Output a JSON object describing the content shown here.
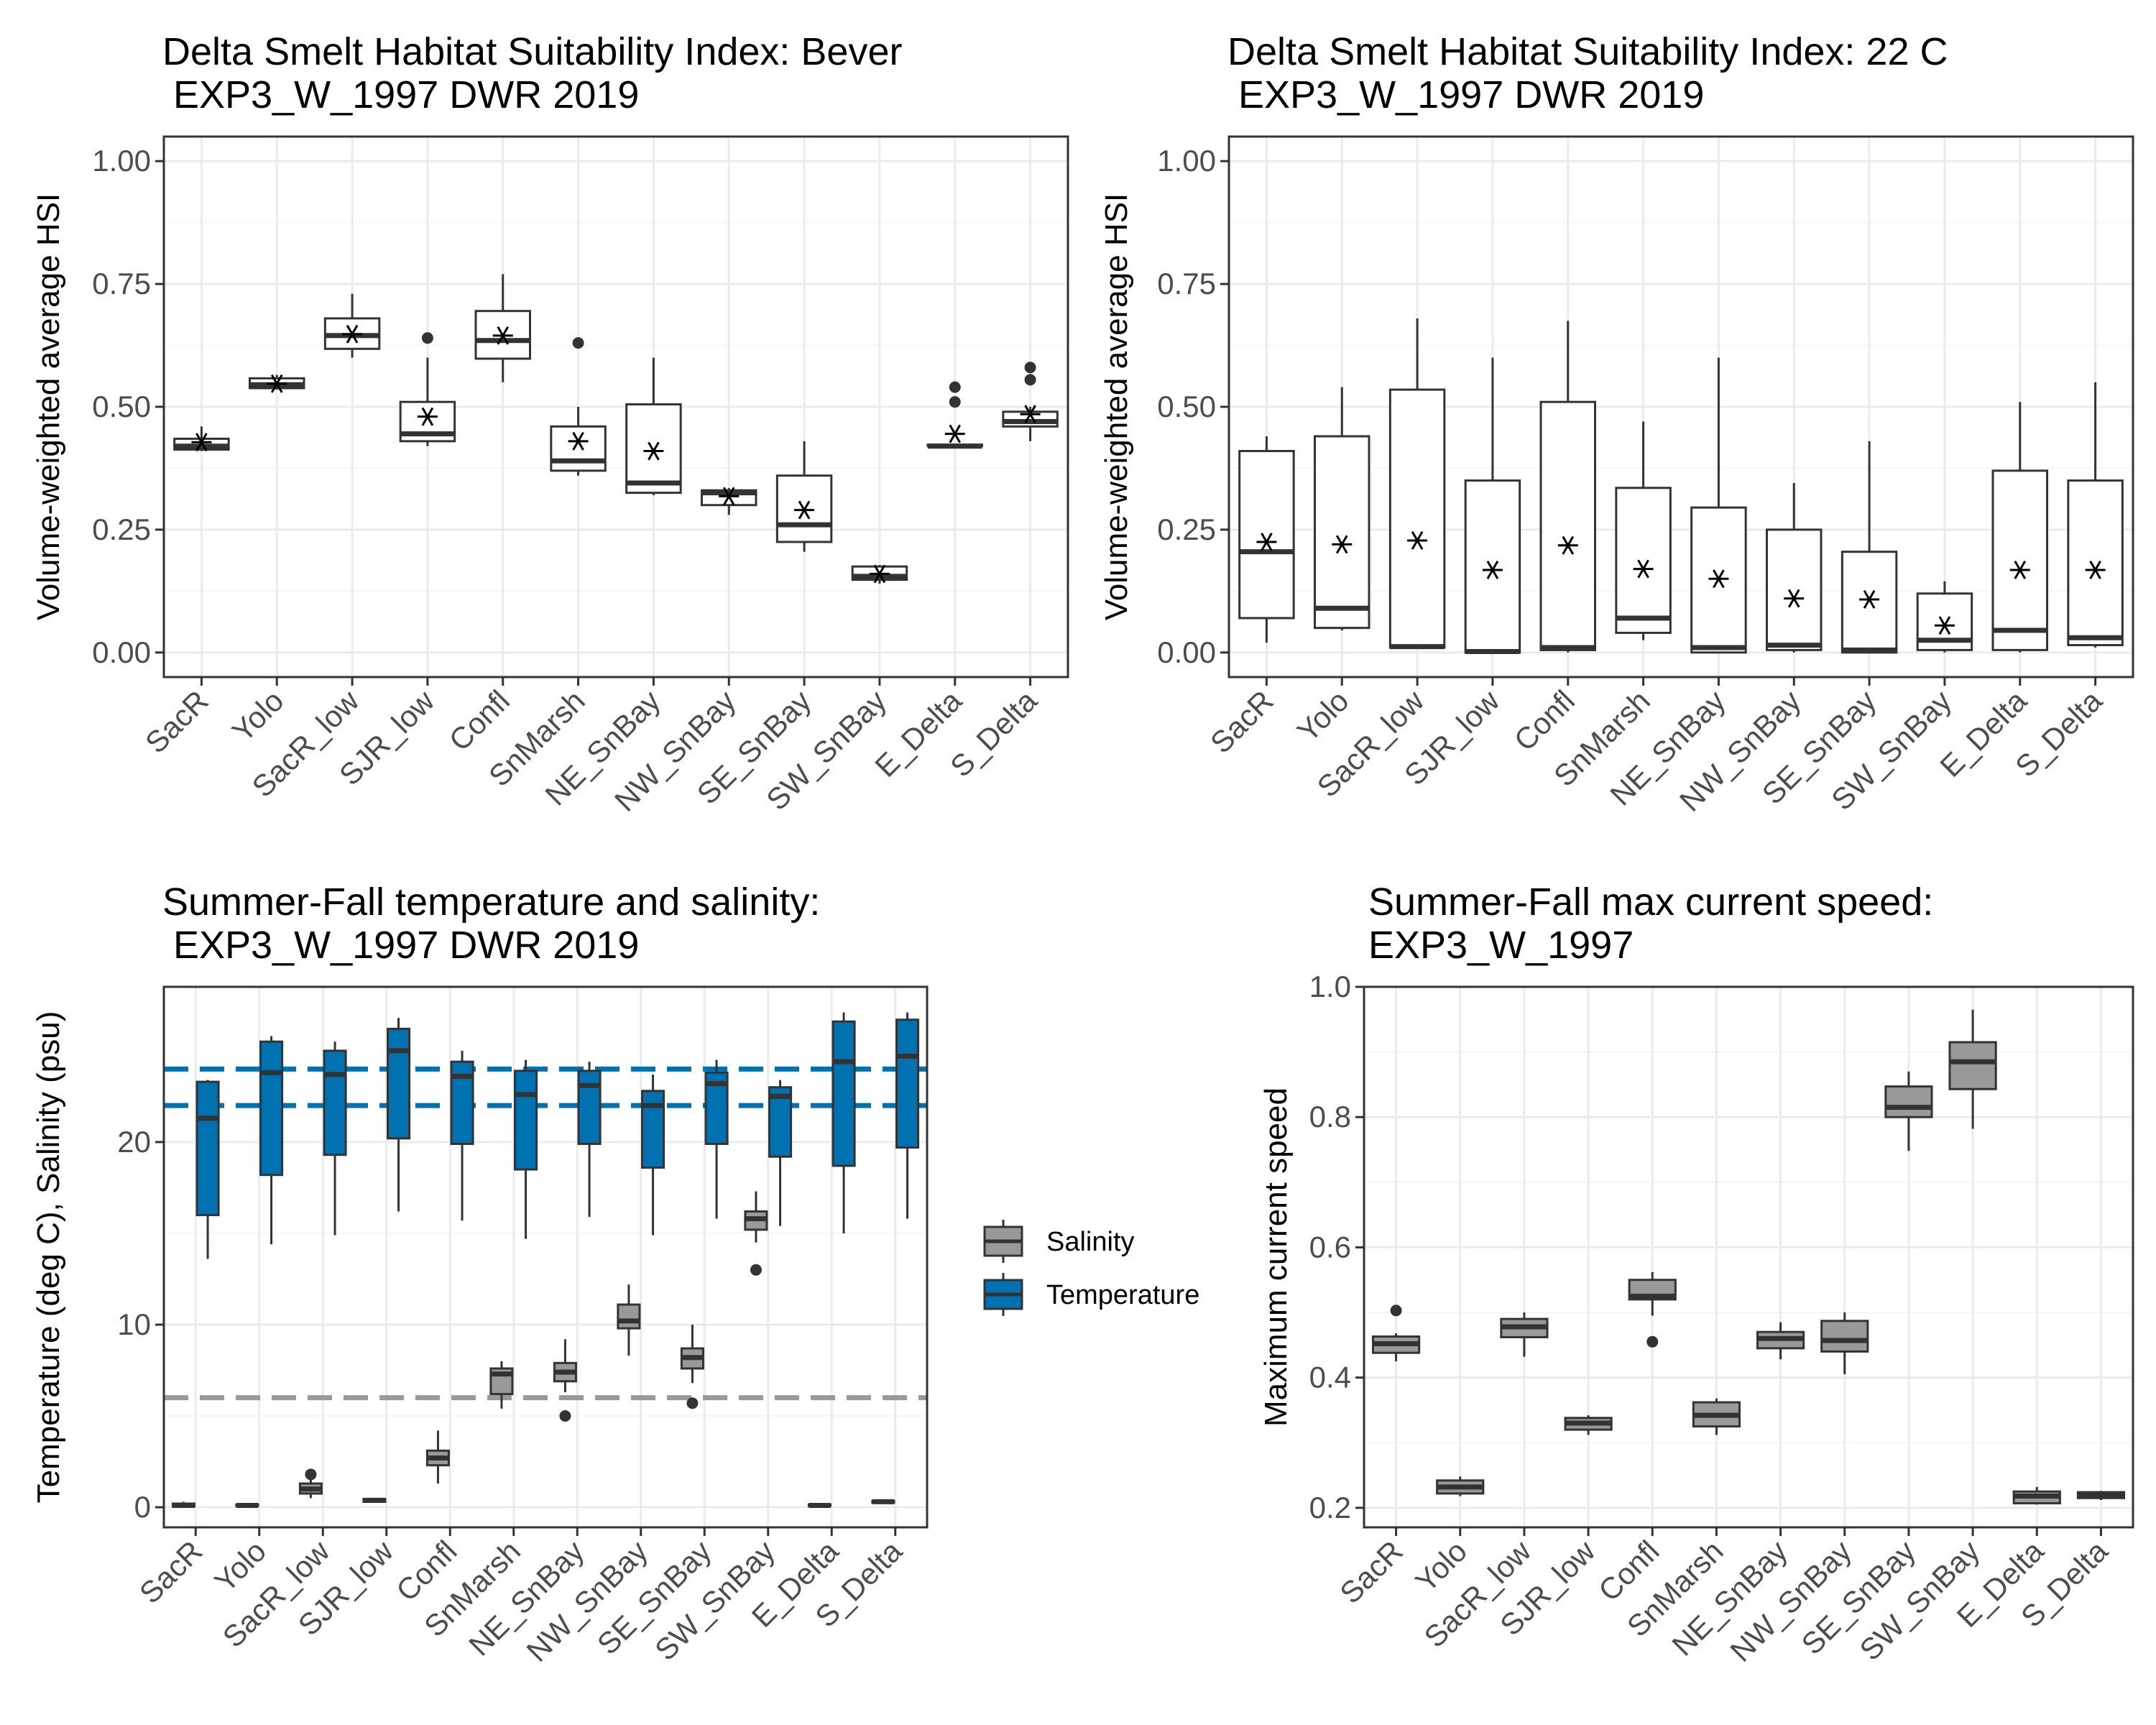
{
  "colors": {
    "panel_border": "#333333",
    "grid_major": "#ebebeb",
    "grid_minor": "#f5f5f5",
    "box_white_fill": "#ffffff",
    "box_stroke": "#333333",
    "salinity_fill": "#999999",
    "temperature_fill": "#0072B2",
    "salinity_line": "#999999",
    "temperature_line": "#0072B2"
  },
  "chart_data": [
    {
      "type": "box",
      "title": "Delta Smelt Habitat Suitability Index: Bever\n EXP3_W_1997 DWR 2019",
      "xlabel": "",
      "ylabel": "Volume-weighted average HSI",
      "ylim": [
        -0.05,
        1.05
      ],
      "yticks": [
        0,
        0.25,
        0.5,
        0.75,
        1
      ],
      "ytick_labels": [
        "0.00",
        "0.25",
        "0.50",
        "0.75",
        "1.00"
      ],
      "categories": [
        "SacR",
        "Yolo",
        "SacR_low",
        "SJR_low",
        "Confl",
        "SnMarsh",
        "NE_SnBay",
        "NW_SnBay",
        "SE_SnBay",
        "SW_SnBay",
        "E_Delta",
        "S_Delta"
      ],
      "fill": "white",
      "grid": true,
      "boxes": [
        {
          "min": 0.41,
          "q1": 0.413,
          "median": 0.42,
          "q3": 0.435,
          "max": 0.46,
          "mean": 0.428,
          "outliers": []
        },
        {
          "min": 0.535,
          "q1": 0.538,
          "median": 0.545,
          "q3": 0.558,
          "max": 0.565,
          "mean": 0.547,
          "outliers": []
        },
        {
          "min": 0.6,
          "q1": 0.618,
          "median": 0.645,
          "q3": 0.68,
          "max": 0.73,
          "mean": 0.648,
          "outliers": []
        },
        {
          "min": 0.42,
          "q1": 0.43,
          "median": 0.445,
          "q3": 0.51,
          "max": 0.6,
          "mean": 0.48,
          "outliers": [
            0.64
          ]
        },
        {
          "min": 0.55,
          "q1": 0.598,
          "median": 0.635,
          "q3": 0.695,
          "max": 0.77,
          "mean": 0.645,
          "outliers": []
        },
        {
          "min": 0.36,
          "q1": 0.37,
          "median": 0.39,
          "q3": 0.46,
          "max": 0.5,
          "mean": 0.43,
          "outliers": [
            0.63
          ]
        },
        {
          "min": 0.32,
          "q1": 0.325,
          "median": 0.345,
          "q3": 0.505,
          "max": 0.6,
          "mean": 0.41,
          "outliers": []
        },
        {
          "min": 0.28,
          "q1": 0.3,
          "median": 0.325,
          "q3": 0.33,
          "max": 0.335,
          "mean": 0.318,
          "outliers": []
        },
        {
          "min": 0.205,
          "q1": 0.225,
          "median": 0.26,
          "q3": 0.36,
          "max": 0.43,
          "mean": 0.29,
          "outliers": []
        },
        {
          "min": 0.14,
          "q1": 0.148,
          "median": 0.155,
          "q3": 0.175,
          "max": 0.178,
          "mean": 0.16,
          "outliers": []
        },
        {
          "min": 0.42,
          "q1": 0.42,
          "median": 0.42,
          "q3": 0.423,
          "max": 0.425,
          "mean": 0.445,
          "outliers": [
            0.51,
            0.54
          ]
        },
        {
          "min": 0.43,
          "q1": 0.46,
          "median": 0.47,
          "q3": 0.49,
          "max": 0.5,
          "mean": 0.485,
          "outliers": [
            0.555,
            0.58
          ]
        }
      ]
    },
    {
      "type": "box",
      "title": "Delta Smelt Habitat Suitability Index: 22 C\n EXP3_W_1997 DWR 2019",
      "xlabel": "",
      "ylabel": "Volume-weighted average HSI",
      "ylim": [
        -0.05,
        1.05
      ],
      "yticks": [
        0,
        0.25,
        0.5,
        0.75,
        1
      ],
      "ytick_labels": [
        "0.00",
        "0.25",
        "0.50",
        "0.75",
        "1.00"
      ],
      "categories": [
        "SacR",
        "Yolo",
        "SacR_low",
        "SJR_low",
        "Confl",
        "SnMarsh",
        "NE_SnBay",
        "NW_SnBay",
        "SE_SnBay",
        "SW_SnBay",
        "E_Delta",
        "S_Delta"
      ],
      "fill": "white",
      "grid": true,
      "boxes": [
        {
          "min": 0.02,
          "q1": 0.07,
          "median": 0.205,
          "q3": 0.41,
          "max": 0.44,
          "mean": 0.225,
          "outliers": []
        },
        {
          "min": 0.045,
          "q1": 0.05,
          "median": 0.09,
          "q3": 0.44,
          "max": 0.54,
          "mean": 0.22,
          "outliers": []
        },
        {
          "min": 0.01,
          "q1": 0.01,
          "median": 0.012,
          "q3": 0.535,
          "max": 0.68,
          "mean": 0.228,
          "outliers": []
        },
        {
          "min": 0.0,
          "q1": 0.0,
          "median": 0.002,
          "q3": 0.35,
          "max": 0.6,
          "mean": 0.168,
          "outliers": []
        },
        {
          "min": 0.0,
          "q1": 0.005,
          "median": 0.01,
          "q3": 0.51,
          "max": 0.675,
          "mean": 0.218,
          "outliers": []
        },
        {
          "min": 0.025,
          "q1": 0.04,
          "median": 0.07,
          "q3": 0.335,
          "max": 0.47,
          "mean": 0.17,
          "outliers": []
        },
        {
          "min": 0.0,
          "q1": 0.0,
          "median": 0.01,
          "q3": 0.295,
          "max": 0.6,
          "mean": 0.15,
          "outliers": []
        },
        {
          "min": 0.0,
          "q1": 0.005,
          "median": 0.015,
          "q3": 0.25,
          "max": 0.345,
          "mean": 0.11,
          "outliers": []
        },
        {
          "min": 0.0,
          "q1": 0.0,
          "median": 0.005,
          "q3": 0.205,
          "max": 0.43,
          "mean": 0.108,
          "outliers": []
        },
        {
          "min": 0.0,
          "q1": 0.005,
          "median": 0.025,
          "q3": 0.12,
          "max": 0.145,
          "mean": 0.055,
          "outliers": []
        },
        {
          "min": 0.0,
          "q1": 0.005,
          "median": 0.045,
          "q3": 0.37,
          "max": 0.51,
          "mean": 0.168,
          "outliers": []
        },
        {
          "min": 0.01,
          "q1": 0.015,
          "median": 0.03,
          "q3": 0.35,
          "max": 0.55,
          "mean": 0.168,
          "outliers": []
        }
      ]
    },
    {
      "type": "box",
      "title": "Summer-Fall temperature and salinity:\n EXP3_W_1997 DWR 2019",
      "xlabel": "",
      "ylabel": "Temperature (deg C), Salinity (psu)",
      "ylim": [
        -1.1,
        28.5
      ],
      "yticks": [
        0,
        10,
        20
      ],
      "ytick_labels": [
        "0",
        "10",
        "20"
      ],
      "categories": [
        "SacR",
        "Yolo",
        "SacR_low",
        "SJR_low",
        "Confl",
        "SnMarsh",
        "NE_SnBay",
        "NW_SnBay",
        "SE_SnBay",
        "SW_SnBay",
        "E_Delta",
        "S_Delta"
      ],
      "grid": true,
      "legend": {
        "position": "right",
        "entries": [
          "Salinity",
          "Temperature"
        ]
      },
      "reference_lines": [
        {
          "series": "Temperature",
          "y": 24,
          "style": "dashed"
        },
        {
          "series": "Temperature",
          "y": 22,
          "style": "dashed"
        },
        {
          "series": "Salinity",
          "y": 6,
          "style": "dashed"
        }
      ],
      "series": [
        {
          "name": "Salinity",
          "boxes": [
            {
              "min": 0.0,
              "q1": 0.05,
              "median": 0.1,
              "q3": 0.2,
              "max": 0.3,
              "outliers": []
            },
            {
              "min": 0.05,
              "q1": 0.08,
              "median": 0.1,
              "q3": 0.15,
              "max": 0.2,
              "outliers": []
            },
            {
              "min": 0.5,
              "q1": 0.75,
              "median": 1.0,
              "q3": 1.3,
              "max": 1.5,
              "outliers": [
                1.8
              ]
            },
            {
              "min": 0.25,
              "q1": 0.3,
              "median": 0.38,
              "q3": 0.45,
              "max": 0.5,
              "outliers": []
            },
            {
              "min": 1.3,
              "q1": 2.3,
              "median": 2.7,
              "q3": 3.1,
              "max": 4.2,
              "outliers": []
            },
            {
              "min": 5.4,
              "q1": 6.2,
              "median": 7.3,
              "q3": 7.6,
              "max": 8.0,
              "outliers": []
            },
            {
              "min": 6.3,
              "q1": 6.9,
              "median": 7.4,
              "q3": 7.9,
              "max": 9.2,
              "outliers": [
                5.0
              ]
            },
            {
              "min": 8.3,
              "q1": 9.8,
              "median": 10.2,
              "q3": 11.1,
              "max": 12.2,
              "outliers": []
            },
            {
              "min": 6.8,
              "q1": 7.6,
              "median": 8.2,
              "q3": 8.7,
              "max": 10.0,
              "outliers": [
                5.7
              ]
            },
            {
              "min": 14.5,
              "q1": 15.2,
              "median": 15.8,
              "q3": 16.2,
              "max": 17.3,
              "outliers": [
                13.0
              ]
            },
            {
              "min": 0.05,
              "q1": 0.08,
              "median": 0.1,
              "q3": 0.15,
              "max": 0.2,
              "outliers": []
            },
            {
              "min": 0.2,
              "q1": 0.25,
              "median": 0.3,
              "q3": 0.35,
              "max": 0.4,
              "outliers": []
            }
          ]
        },
        {
          "name": "Temperature",
          "boxes": [
            {
              "min": 13.6,
              "q1": 16.0,
              "median": 21.3,
              "q3": 23.3,
              "max": 23.4,
              "outliers": []
            },
            {
              "min": 14.4,
              "q1": 18.2,
              "median": 23.8,
              "q3": 25.5,
              "max": 25.8,
              "outliers": []
            },
            {
              "min": 14.9,
              "q1": 19.3,
              "median": 23.7,
              "q3": 25.0,
              "max": 25.5,
              "outliers": []
            },
            {
              "min": 16.2,
              "q1": 20.2,
              "median": 25.0,
              "q3": 26.2,
              "max": 26.8,
              "outliers": []
            },
            {
              "min": 15.7,
              "q1": 19.9,
              "median": 23.6,
              "q3": 24.4,
              "max": 25.0,
              "outliers": []
            },
            {
              "min": 14.7,
              "q1": 18.5,
              "median": 22.6,
              "q3": 23.9,
              "max": 24.5,
              "outliers": []
            },
            {
              "min": 15.9,
              "q1": 19.9,
              "median": 23.1,
              "q3": 23.9,
              "max": 24.4,
              "outliers": []
            },
            {
              "min": 14.9,
              "q1": 18.6,
              "median": 22.0,
              "q3": 22.8,
              "max": 23.7,
              "outliers": []
            },
            {
              "min": 15.8,
              "q1": 19.9,
              "median": 23.2,
              "q3": 23.8,
              "max": 24.5,
              "outliers": []
            },
            {
              "min": 15.4,
              "q1": 19.2,
              "median": 22.5,
              "q3": 23.0,
              "max": 23.4,
              "outliers": []
            },
            {
              "min": 15.0,
              "q1": 18.7,
              "median": 24.4,
              "q3": 26.6,
              "max": 27.1,
              "outliers": []
            },
            {
              "min": 15.8,
              "q1": 19.7,
              "median": 24.7,
              "q3": 26.7,
              "max": 27.1,
              "outliers": []
            }
          ]
        }
      ]
    },
    {
      "type": "box",
      "title": "Summer-Fall max current speed:\nEXP3_W_1997",
      "xlabel": "",
      "ylabel": "Maximum current speed",
      "ylim": [
        0.17,
        1.0
      ],
      "yticks": [
        0.2,
        0.4,
        0.6,
        0.8,
        1.0
      ],
      "ytick_labels": [
        "0.2",
        "0.4",
        "0.6",
        "0.8",
        "1.0"
      ],
      "categories": [
        "SacR",
        "Yolo",
        "SacR_low",
        "SJR_low",
        "Confl",
        "SnMarsh",
        "NE_SnBay",
        "NW_SnBay",
        "SE_SnBay",
        "SW_SnBay",
        "E_Delta",
        "S_Delta"
      ],
      "fill": "grey",
      "grid": true,
      "boxes": [
        {
          "min": 0.425,
          "q1": 0.438,
          "median": 0.452,
          "q3": 0.463,
          "max": 0.468,
          "outliers": [
            0.503
          ]
        },
        {
          "min": 0.218,
          "q1": 0.222,
          "median": 0.232,
          "q3": 0.242,
          "max": 0.248,
          "outliers": []
        },
        {
          "min": 0.432,
          "q1": 0.462,
          "median": 0.478,
          "q3": 0.49,
          "max": 0.5,
          "outliers": []
        },
        {
          "min": 0.312,
          "q1": 0.32,
          "median": 0.33,
          "q3": 0.338,
          "max": 0.342,
          "outliers": []
        },
        {
          "min": 0.495,
          "q1": 0.52,
          "median": 0.525,
          "q3": 0.55,
          "max": 0.562,
          "outliers": [
            0.455
          ]
        },
        {
          "min": 0.312,
          "q1": 0.325,
          "median": 0.342,
          "q3": 0.362,
          "max": 0.368,
          "outliers": []
        },
        {
          "min": 0.428,
          "q1": 0.445,
          "median": 0.46,
          "q3": 0.47,
          "max": 0.485,
          "outliers": []
        },
        {
          "min": 0.405,
          "q1": 0.44,
          "median": 0.457,
          "q3": 0.487,
          "max": 0.5,
          "outliers": []
        },
        {
          "min": 0.748,
          "q1": 0.8,
          "median": 0.815,
          "q3": 0.847,
          "max": 0.87,
          "outliers": []
        },
        {
          "min": 0.782,
          "q1": 0.843,
          "median": 0.885,
          "q3": 0.915,
          "max": 0.965,
          "outliers": []
        },
        {
          "min": 0.205,
          "q1": 0.207,
          "median": 0.218,
          "q3": 0.225,
          "max": 0.232,
          "outliers": []
        },
        {
          "min": 0.212,
          "q1": 0.215,
          "median": 0.22,
          "q3": 0.224,
          "max": 0.226,
          "outliers": []
        }
      ]
    }
  ]
}
